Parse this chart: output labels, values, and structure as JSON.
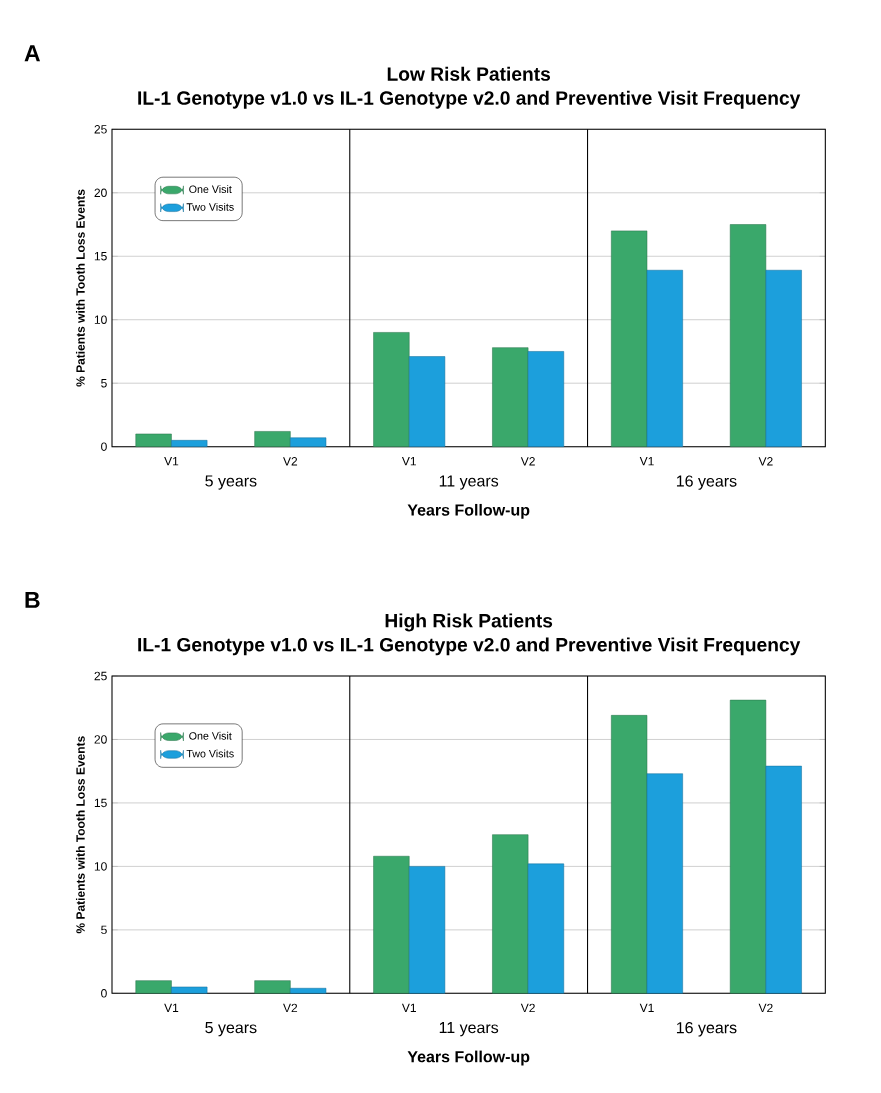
{
  "chart_data": [
    {
      "type": "bar",
      "title": "Low Risk Patients",
      "subtitle": "IL-1 Genotype v1.0 vs IL-1 Genotype v2.0 and Preventive Visit Frequency",
      "xlabel": "Years Follow-up",
      "ylabel": "% Patients with Tooth Loss Events",
      "categories": [
        "V1",
        "V2",
        "V1",
        "V2",
        "V1",
        "V2"
      ],
      "series": [
        {
          "name": "One Visit",
          "color": "#3aa86b",
          "values": [
            1.0,
            1.2,
            9.0,
            7.8,
            17.0,
            17.5
          ]
        },
        {
          "name": "Two Visits",
          "color": "#1c9fdc",
          "values": [
            0.5,
            0.7,
            7.1,
            7.5,
            13.9,
            13.9
          ]
        }
      ],
      "ylim": [
        0,
        25
      ],
      "yticks": [
        0,
        5,
        10,
        15,
        20,
        25
      ],
      "grid": "y",
      "legend": "top left",
      "annotations": [
        "A",
        "5 years",
        "11 years",
        "16 years"
      ]
    },
    {
      "type": "bar",
      "title": "High Risk Patients",
      "subtitle": "IL-1 Genotype v1.0 vs IL-1 Genotype v2.0 and Preventive Visit Frequency",
      "xlabel": "Years Follow-up",
      "ylabel": "% Patients with Tooth Loss Events",
      "categories": [
        "V1",
        "V2",
        "V1",
        "V2",
        "V1",
        "V2"
      ],
      "series": [
        {
          "name": "One Visit",
          "color": "#3aa86b",
          "values": [
            1.0,
            1.0,
            10.8,
            12.5,
            21.9,
            23.1
          ]
        },
        {
          "name": "Two Visits",
          "color": "#1c9fdc",
          "values": [
            0.5,
            0.4,
            10.0,
            10.2,
            17.3,
            17.9
          ]
        }
      ],
      "ylim": [
        0,
        25
      ],
      "yticks": [
        0,
        5,
        10,
        15,
        20,
        25
      ],
      "grid": "y",
      "legend": "top left",
      "annotations": [
        "B",
        "5 years",
        "11 years",
        "16 years"
      ]
    }
  ]
}
